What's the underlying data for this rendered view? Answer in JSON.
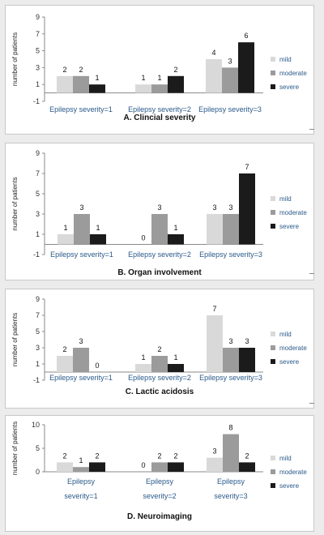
{
  "colors": {
    "mild": "#d9d9d9",
    "moderate": "#9b9b9b",
    "severe": "#1b1b1b"
  },
  "chart_data": [
    {
      "type": "bar",
      "title": "A. Clincial severity",
      "ylabel": "number of patients",
      "yticks": [
        -1,
        1,
        3,
        5,
        7,
        9
      ],
      "ylim": [
        -1,
        9
      ],
      "categories": [
        "Epilepsy severity=1",
        "Epilepsy severity=2",
        "Epilepsy severity=3"
      ],
      "series": [
        {
          "name": "mild",
          "values": [
            2,
            1,
            4
          ]
        },
        {
          "name": "moderate",
          "values": [
            2,
            1,
            3
          ]
        },
        {
          "name": "severe",
          "values": [
            1,
            2,
            6
          ]
        }
      ],
      "legend": "right"
    },
    {
      "type": "bar",
      "title": "B. Organ involvement",
      "ylabel": "number of patients",
      "yticks": [
        -1,
        1,
        3,
        5,
        7,
        9
      ],
      "ylim": [
        -1,
        9
      ],
      "categories": [
        "Epilepsy severity=1",
        "Epilepsy severity=2",
        "Epilepsy severity=3"
      ],
      "series": [
        {
          "name": "mild",
          "values": [
            1,
            0,
            3
          ]
        },
        {
          "name": "moderate",
          "values": [
            3,
            3,
            3
          ]
        },
        {
          "name": "severe",
          "values": [
            1,
            1,
            7
          ]
        }
      ],
      "legend": "right"
    },
    {
      "type": "bar",
      "title": "C. Lactic acidosis",
      "ylabel": "number of patients",
      "yticks": [
        -1,
        1,
        3,
        5,
        7,
        9
      ],
      "ylim": [
        -1,
        9
      ],
      "categories": [
        "Epilepsy severity=1",
        "Epilepsy severity=2",
        "Epilepsy severity=3"
      ],
      "series": [
        {
          "name": "mild",
          "values": [
            2,
            1,
            7
          ]
        },
        {
          "name": "moderate",
          "values": [
            3,
            2,
            3
          ]
        },
        {
          "name": "severe",
          "values": [
            0,
            1,
            3
          ]
        }
      ],
      "legend": "right"
    },
    {
      "type": "bar",
      "title": "D. Neuroimaging",
      "ylabel": "number of patients",
      "yticks": [
        0,
        5,
        10
      ],
      "ylim": [
        0,
        10
      ],
      "categories": [
        [
          "Epilepsy",
          "severity=1"
        ],
        [
          "Epilepsy",
          "severity=2"
        ],
        [
          "Epilepsy",
          "severity=3"
        ]
      ],
      "series": [
        {
          "name": "mild",
          "values": [
            2,
            0,
            3
          ]
        },
        {
          "name": "moderate",
          "values": [
            1,
            2,
            8
          ]
        },
        {
          "name": "severe",
          "values": [
            2,
            2,
            2
          ]
        }
      ],
      "legend": "right"
    }
  ]
}
